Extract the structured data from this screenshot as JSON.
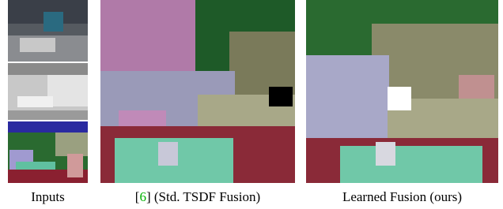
{
  "captions": {
    "inputs": "Inputs",
    "baseline": {
      "open": "[",
      "ref": "6",
      "close": "] (Std. TSDF Fusion)"
    },
    "ours": "Learned Fusion (ours)"
  }
}
